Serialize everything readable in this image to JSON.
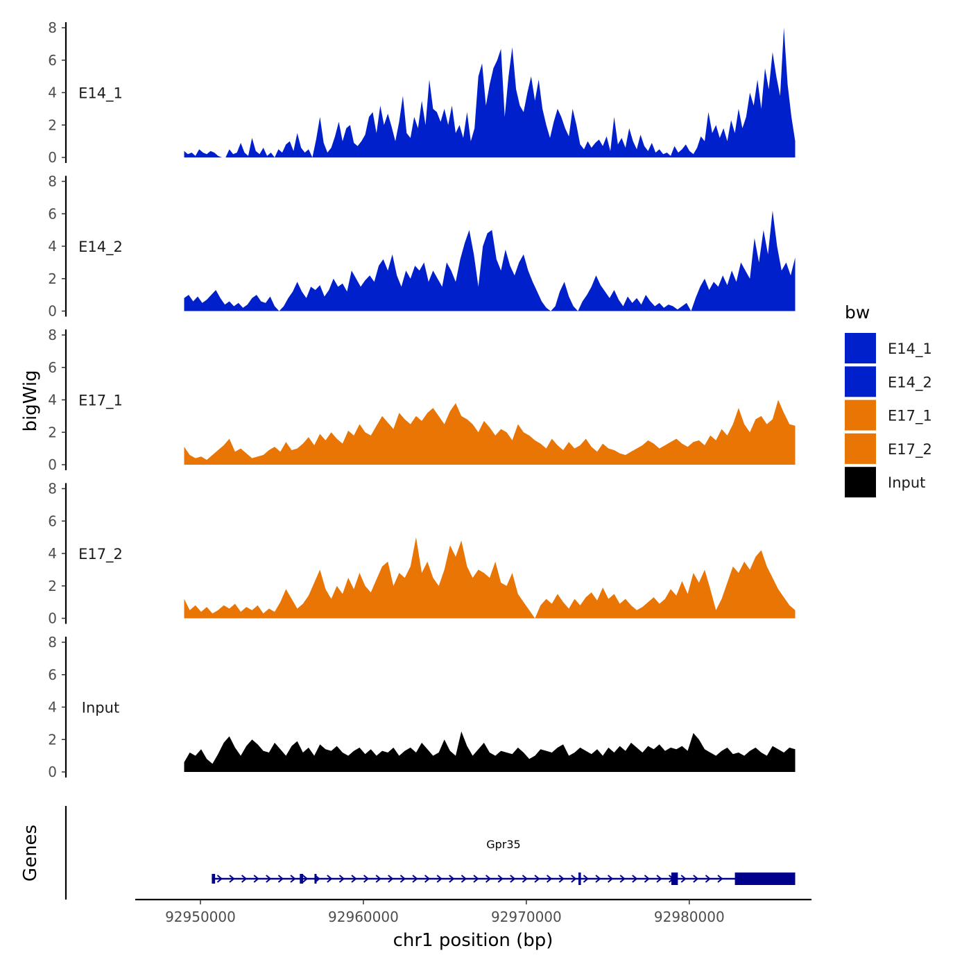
{
  "chart_data": {
    "type": "area",
    "title": "",
    "ylabel": "bigWig",
    "genes_label": "Genes",
    "xlabel": "chr1 position (bp)",
    "xlim": [
      92946000,
      92987500
    ],
    "ylim": [
      0,
      8
    ],
    "x_ticks": [
      92950000,
      92960000,
      92970000,
      92980000
    ],
    "x_tick_labels": [
      "92950000",
      "92960000",
      "92970000",
      "92980000"
    ],
    "y_ticks": [
      0,
      2,
      4,
      6,
      8
    ],
    "y_tick_labels": [
      "0",
      "2",
      "4",
      "6",
      "8"
    ],
    "legend": {
      "title": "bw",
      "position": "right",
      "entries": [
        {
          "label": "E14_1",
          "color": "#0020CC"
        },
        {
          "label": "E14_2",
          "color": "#0020CC"
        },
        {
          "label": "E17_1",
          "color": "#E87504"
        },
        {
          "label": "E17_2",
          "color": "#E87504"
        },
        {
          "label": "Input",
          "color": "#000000"
        }
      ]
    },
    "signal_x_range": [
      92949000,
      92986500
    ],
    "series": [
      {
        "name": "E14_1",
        "color": "#0020CC",
        "values": [
          0.4,
          0.2,
          0.3,
          0.1,
          0.5,
          0.3,
          0.2,
          0.4,
          0.3,
          0.1,
          0.0,
          0.0,
          0.5,
          0.2,
          0.3,
          0.9,
          0.3,
          0.1,
          1.2,
          0.4,
          0.2,
          0.6,
          0.1,
          0.3,
          0.0,
          0.5,
          0.3,
          0.8,
          1.0,
          0.4,
          1.5,
          0.6,
          0.3,
          0.5,
          0.0,
          1.1,
          2.5,
          0.9,
          0.3,
          0.6,
          1.3,
          2.2,
          1.0,
          1.8,
          2.0,
          0.9,
          0.7,
          1.0,
          1.4,
          2.5,
          2.8,
          1.5,
          3.2,
          2.0,
          2.7,
          1.9,
          1.0,
          2.2,
          3.8,
          1.5,
          1.2,
          2.5,
          1.8,
          3.5,
          2.0,
          4.8,
          3.0,
          2.8,
          2.2,
          3.0,
          2.0,
          3.2,
          1.5,
          2.0,
          1.2,
          2.8,
          1.0,
          1.8,
          5.0,
          5.8,
          3.2,
          4.5,
          5.5,
          6.0,
          6.7,
          2.5,
          5.0,
          6.8,
          4.2,
          3.2,
          2.8,
          4.0,
          5.0,
          3.5,
          4.8,
          3.0,
          2.0,
          1.2,
          2.2,
          3.0,
          2.5,
          1.8,
          1.3,
          3.0,
          2.0,
          0.8,
          0.5,
          1.0,
          0.6,
          0.9,
          1.1,
          0.7,
          1.3,
          0.4,
          2.5,
          0.8,
          1.2,
          0.6,
          1.8,
          1.0,
          0.5,
          1.4,
          0.7,
          0.4,
          0.9,
          0.3,
          0.5,
          0.2,
          0.3,
          0.1,
          0.7,
          0.3,
          0.5,
          0.8,
          0.4,
          0.2,
          0.6,
          1.3,
          1.0,
          2.8,
          1.5,
          2.0,
          1.2,
          1.8,
          1.0,
          2.3,
          1.5,
          3.0,
          1.8,
          2.5,
          4.0,
          3.2,
          4.8,
          3.0,
          5.5,
          4.2,
          6.5,
          5.0,
          3.8,
          8.0,
          4.5,
          2.5,
          1.0
        ]
      },
      {
        "name": "E14_2",
        "color": "#0020CC",
        "values": [
          0.8,
          1.0,
          0.6,
          0.9,
          0.5,
          0.7,
          1.0,
          1.3,
          0.8,
          0.4,
          0.6,
          0.3,
          0.5,
          0.2,
          0.4,
          0.8,
          1.0,
          0.6,
          0.5,
          0.9,
          0.3,
          0.0,
          0.3,
          0.8,
          1.2,
          1.8,
          1.2,
          0.8,
          1.5,
          1.3,
          1.6,
          0.9,
          1.3,
          2.0,
          1.5,
          1.7,
          1.2,
          2.5,
          2.0,
          1.5,
          1.9,
          2.2,
          1.8,
          2.8,
          3.2,
          2.5,
          3.5,
          2.2,
          1.5,
          2.5,
          2.0,
          2.8,
          2.5,
          3.0,
          1.8,
          2.5,
          2.0,
          1.5,
          3.0,
          2.5,
          1.8,
          3.2,
          4.2,
          5.0,
          3.5,
          1.5,
          4.0,
          4.8,
          5.0,
          3.2,
          2.5,
          3.8,
          2.8,
          2.2,
          3.0,
          3.5,
          2.5,
          1.8,
          1.2,
          0.6,
          0.2,
          0.0,
          0.3,
          1.2,
          1.8,
          0.9,
          0.3,
          0.0,
          0.6,
          1.0,
          1.5,
          2.2,
          1.6,
          1.2,
          0.8,
          1.3,
          0.7,
          0.3,
          0.9,
          0.5,
          0.8,
          0.4,
          1.0,
          0.6,
          0.3,
          0.5,
          0.2,
          0.4,
          0.3,
          0.1,
          0.3,
          0.5,
          0.0,
          0.8,
          1.5,
          2.0,
          1.3,
          1.8,
          1.5,
          2.2,
          1.6,
          2.5,
          1.8,
          3.0,
          2.5,
          2.0,
          4.5,
          3.0,
          5.0,
          3.5,
          6.2,
          4.0,
          2.5,
          3.0,
          2.2,
          3.3
        ]
      },
      {
        "name": "E17_1",
        "color": "#E87504",
        "values": [
          1.1,
          0.6,
          0.4,
          0.5,
          0.3,
          0.6,
          0.9,
          1.2,
          1.6,
          0.8,
          1.0,
          0.7,
          0.4,
          0.5,
          0.6,
          0.9,
          1.1,
          0.8,
          1.4,
          0.9,
          1.0,
          1.3,
          1.7,
          1.2,
          1.9,
          1.5,
          2.0,
          1.6,
          1.3,
          2.1,
          1.8,
          2.5,
          2.0,
          1.8,
          2.4,
          3.0,
          2.6,
          2.2,
          3.2,
          2.8,
          2.5,
          3.0,
          2.7,
          3.2,
          3.5,
          3.0,
          2.5,
          3.3,
          3.8,
          3.0,
          2.8,
          2.5,
          2.0,
          2.7,
          2.3,
          1.8,
          2.2,
          2.0,
          1.5,
          2.5,
          2.0,
          1.8,
          1.5,
          1.3,
          1.0,
          1.6,
          1.2,
          0.9,
          1.4,
          1.0,
          1.2,
          1.6,
          1.1,
          0.8,
          1.3,
          1.0,
          0.9,
          0.7,
          0.6,
          0.8,
          1.0,
          1.2,
          1.5,
          1.3,
          1.0,
          1.2,
          1.4,
          1.6,
          1.3,
          1.1,
          1.4,
          1.5,
          1.2,
          1.8,
          1.5,
          2.2,
          1.8,
          2.5,
          3.5,
          2.5,
          2.0,
          2.8,
          3.0,
          2.5,
          2.8,
          4.0,
          3.2,
          2.5,
          2.4
        ]
      },
      {
        "name": "E17_2",
        "color": "#E87504",
        "values": [
          1.2,
          0.5,
          0.8,
          0.4,
          0.7,
          0.3,
          0.5,
          0.8,
          0.6,
          0.9,
          0.4,
          0.7,
          0.5,
          0.8,
          0.3,
          0.6,
          0.4,
          1.0,
          1.8,
          1.2,
          0.6,
          0.9,
          1.4,
          2.2,
          3.0,
          1.8,
          1.2,
          2.0,
          1.5,
          2.5,
          1.8,
          2.8,
          2.0,
          1.6,
          2.4,
          3.2,
          3.5,
          2.0,
          2.8,
          2.5,
          3.2,
          5.0,
          2.8,
          3.5,
          2.5,
          2.0,
          3.0,
          4.5,
          3.8,
          4.8,
          3.2,
          2.5,
          3.0,
          2.8,
          2.5,
          3.5,
          2.2,
          2.0,
          2.8,
          1.5,
          1.0,
          0.5,
          0.0,
          0.8,
          1.2,
          0.9,
          1.5,
          1.0,
          0.6,
          1.2,
          0.8,
          1.3,
          1.6,
          1.1,
          1.9,
          1.2,
          1.5,
          0.9,
          1.2,
          0.8,
          0.5,
          0.7,
          1.0,
          1.3,
          0.9,
          1.2,
          1.8,
          1.4,
          2.3,
          1.5,
          2.8,
          2.2,
          3.0,
          1.8,
          0.5,
          1.2,
          2.2,
          3.2,
          2.8,
          3.5,
          3.0,
          3.8,
          4.2,
          3.2,
          2.5,
          1.8,
          1.3,
          0.8,
          0.5
        ]
      },
      {
        "name": "Input",
        "color": "#000000",
        "values": [
          0.6,
          1.2,
          1.0,
          1.4,
          0.8,
          0.5,
          1.1,
          1.8,
          2.2,
          1.5,
          1.0,
          1.6,
          2.0,
          1.7,
          1.3,
          1.2,
          1.8,
          1.4,
          1.0,
          1.6,
          1.9,
          1.2,
          1.5,
          1.0,
          1.7,
          1.4,
          1.3,
          1.6,
          1.2,
          1.0,
          1.3,
          1.5,
          1.1,
          1.4,
          1.0,
          1.3,
          1.2,
          1.5,
          1.0,
          1.3,
          1.5,
          1.2,
          1.8,
          1.4,
          1.0,
          1.2,
          2.0,
          1.3,
          1.0,
          2.5,
          1.6,
          1.0,
          1.4,
          1.8,
          1.2,
          1.0,
          1.3,
          1.2,
          1.1,
          1.5,
          1.2,
          0.8,
          1.0,
          1.4,
          1.3,
          1.2,
          1.5,
          1.7,
          1.0,
          1.2,
          1.5,
          1.3,
          1.1,
          1.4,
          1.0,
          1.5,
          1.2,
          1.6,
          1.3,
          1.8,
          1.5,
          1.2,
          1.6,
          1.4,
          1.7,
          1.3,
          1.5,
          1.4,
          1.6,
          1.3,
          2.4,
          2.0,
          1.4,
          1.2,
          1.0,
          1.3,
          1.5,
          1.1,
          1.2,
          1.0,
          1.3,
          1.5,
          1.2,
          1.0,
          1.6,
          1.4,
          1.2,
          1.5,
          1.4
        ]
      }
    ],
    "gene": {
      "name": "Gpr35",
      "strand": "+",
      "start": 92950700,
      "end": 92986500,
      "exons": [
        {
          "start": 92950700,
          "end": 92950900,
          "coding": false
        },
        {
          "start": 92956100,
          "end": 92956300,
          "coding": false
        },
        {
          "start": 92957000,
          "end": 92957100,
          "coding": false
        },
        {
          "start": 92973200,
          "end": 92973350,
          "coding": true
        },
        {
          "start": 92978900,
          "end": 92979300,
          "coding": true
        },
        {
          "start": 92982800,
          "end": 92986500,
          "coding": true
        }
      ]
    }
  }
}
